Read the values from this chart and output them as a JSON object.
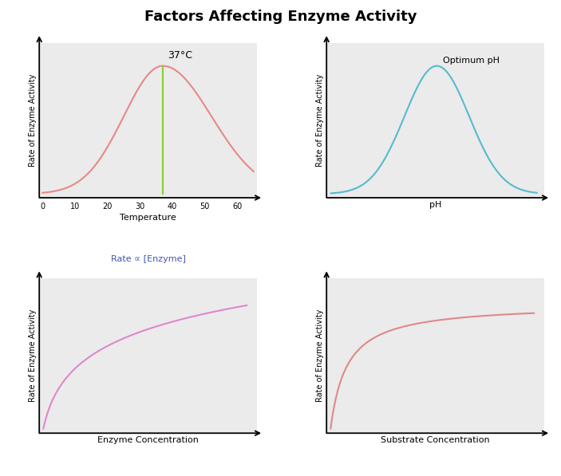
{
  "title": "Factors Affecting Enzyme Activity",
  "title_fontsize": 13,
  "title_fontweight": "bold",
  "bg_color": "#ebebeb",
  "fig_bg_color": "#ffffff",
  "temp_xlabel": "Temperature",
  "temp_ylabel": "Rate of Enzyme Activity",
  "temp_ticks": [
    0,
    10,
    20,
    30,
    40,
    50,
    60
  ],
  "temp_peak": 37,
  "temp_annotation": "37°C",
  "temp_curve_color": "#e88888",
  "temp_line_color": "#88cc33",
  "ph_xlabel": "pH",
  "ph_ylabel": "Rate of Enzyme Activity",
  "ph_annotation": "Optimum pH",
  "ph_curve_color": "#55bbcc",
  "enzyme_xlabel": "Enzyme Concentration",
  "enzyme_ylabel": "Rate of Enzyme Activity",
  "enzyme_annotation": "Rate ∝ [Enzyme]",
  "enzyme_annotation_color": "#4455aa",
  "enzyme_curve_color": "#dd88cc",
  "substrate_xlabel": "Substrate Concentration",
  "substrate_ylabel": "Rate of Enzyme Activity",
  "substrate_curve_color": "#e08888"
}
